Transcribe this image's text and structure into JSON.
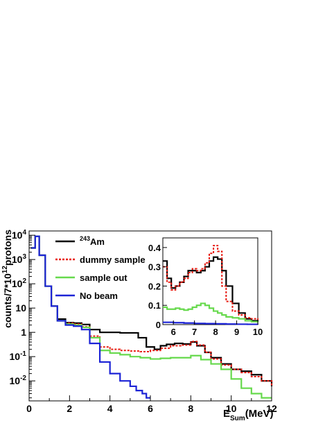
{
  "chart_data": [
    {
      "type": "line",
      "ylabel_html": [
        "counts/7*10",
        "12",
        "protons"
      ],
      "xlabel_parts": [
        "E",
        "Sum",
        "(MeV)"
      ],
      "xlim": [
        0,
        12
      ],
      "ylim": [
        0.0015,
        15000
      ],
      "y_scale": "log",
      "x_ticks": [
        "0",
        "2",
        "4",
        "6",
        "8",
        "10",
        "12"
      ],
      "y_ticks": [
        {
          "base": "10",
          "exp": "4"
        },
        {
          "base": "10",
          "exp": "3"
        },
        {
          "base": "10",
          "exp": "2"
        },
        {
          "base": "10",
          "exp": ""
        },
        {
          "base": "1",
          "exp": ""
        },
        {
          "base": "10",
          "exp": "-1"
        },
        {
          "base": "10",
          "exp": "-2"
        }
      ],
      "legend_position": "top-left",
      "series": [
        {
          "name": "Am",
          "name_sup": "243",
          "color": "#000000",
          "style": "solid",
          "x": [
            0.1,
            0.3,
            0.5,
            0.8,
            1.1,
            1.4,
            1.8,
            2.2,
            2.6,
            3.0,
            3.5,
            4.0,
            4.5,
            5.0,
            5.4,
            5.8,
            6.2,
            6.5,
            6.8,
            7.2,
            7.6,
            8.0,
            8.3,
            8.7,
            9.0,
            9.5,
            10.0,
            10.5,
            11.0,
            11.5,
            12.0
          ],
          "y": [
            3000,
            9000,
            1500,
            80,
            12,
            3.5,
            2.5,
            2.4,
            2.1,
            1.3,
            1.0,
            1.0,
            0.95,
            0.95,
            0.6,
            0.25,
            0.2,
            0.28,
            0.32,
            0.35,
            0.33,
            0.4,
            0.28,
            0.15,
            0.09,
            0.05,
            0.03,
            0.025,
            0.018,
            0.01,
            0.006
          ]
        },
        {
          "name": "dummy sample",
          "color": "#e8190f",
          "style": "dotted",
          "x": [
            0.1,
            0.3,
            0.5,
            0.8,
            1.1,
            1.4,
            1.8,
            2.2,
            2.6,
            3.0,
            3.5,
            4.0,
            4.5,
            5.0,
            5.5,
            6.0,
            6.5,
            7.0,
            7.5,
            8.0,
            8.3,
            8.7,
            9.0,
            9.5,
            10.0,
            10.5,
            11.0,
            11.5,
            12.0
          ],
          "y": [
            3000,
            9000,
            1500,
            80,
            12,
            3.0,
            2.4,
            2.2,
            1.7,
            0.7,
            0.25,
            0.2,
            0.18,
            0.17,
            0.16,
            0.18,
            0.22,
            0.28,
            0.3,
            0.42,
            0.3,
            0.15,
            0.08,
            0.045,
            0.03,
            0.022,
            0.015,
            0.01,
            0.006
          ]
        },
        {
          "name": "sample out",
          "color": "#66d94c",
          "style": "solid",
          "x": [
            0.1,
            0.3,
            0.5,
            0.8,
            1.1,
            1.4,
            1.8,
            2.2,
            2.6,
            3.0,
            3.5,
            4.0,
            4.5,
            5.0,
            5.5,
            6.0,
            6.5,
            7.0,
            7.5,
            8.0,
            8.5,
            9.0,
            9.5,
            10.0,
            10.5,
            11.0,
            11.5,
            12.0
          ],
          "y": [
            3000,
            9000,
            1500,
            80,
            12,
            3.0,
            2.2,
            2.0,
            1.6,
            0.6,
            0.18,
            0.14,
            0.12,
            0.1,
            0.09,
            0.08,
            0.085,
            0.09,
            0.09,
            0.11,
            0.075,
            0.05,
            0.03,
            0.012,
            0.005,
            0.003,
            0.002,
            0.002
          ]
        },
        {
          "name": "No beam",
          "color": "#1c23d6",
          "style": "solid",
          "x": [
            0.1,
            0.3,
            0.5,
            0.8,
            1.1,
            1.4,
            1.8,
            2.2,
            2.6,
            3.0,
            3.5,
            4.0,
            4.5,
            5.0,
            5.3,
            5.6,
            5.8,
            6.0
          ],
          "y": [
            3000,
            9000,
            1500,
            80,
            12,
            3.0,
            2.0,
            1.8,
            1.3,
            0.35,
            0.06,
            0.02,
            0.01,
            0.006,
            0.004,
            0.003,
            0.002,
            0.002
          ]
        }
      ]
    },
    {
      "type": "line",
      "role": "inset",
      "xlim": [
        5.5,
        10
      ],
      "ylim": [
        0,
        0.45
      ],
      "y_scale": "linear",
      "x_ticks": [
        "6",
        "7",
        "8",
        "9",
        "10"
      ],
      "y_ticks": [
        "0",
        "0.1",
        "0.2",
        "0.3",
        "0.4"
      ],
      "series": [
        {
          "color": "#000000",
          "style": "solid",
          "x": [
            5.5,
            5.7,
            5.9,
            6.1,
            6.3,
            6.5,
            6.7,
            6.9,
            7.1,
            7.3,
            7.5,
            7.7,
            7.9,
            8.1,
            8.3,
            8.5,
            8.8,
            9.1,
            9.4,
            9.7,
            10.0
          ],
          "y": [
            0.33,
            0.24,
            0.19,
            0.2,
            0.22,
            0.25,
            0.28,
            0.28,
            0.27,
            0.28,
            0.3,
            0.33,
            0.35,
            0.34,
            0.28,
            0.2,
            0.11,
            0.06,
            0.03,
            0.02,
            0.015
          ]
        },
        {
          "color": "#e8190f",
          "style": "dotted",
          "x": [
            5.5,
            5.7,
            5.9,
            6.1,
            6.3,
            6.5,
            6.7,
            6.9,
            7.1,
            7.3,
            7.5,
            7.7,
            7.9,
            8.1,
            8.3,
            8.5,
            8.8,
            9.1,
            9.4,
            9.7,
            10.0
          ],
          "y": [
            0.3,
            0.22,
            0.18,
            0.2,
            0.22,
            0.24,
            0.27,
            0.29,
            0.28,
            0.29,
            0.32,
            0.37,
            0.41,
            0.38,
            0.2,
            0.12,
            0.07,
            0.05,
            0.035,
            0.03,
            0.025
          ]
        },
        {
          "color": "#66d94c",
          "style": "solid",
          "x": [
            5.5,
            5.7,
            5.9,
            6.1,
            6.3,
            6.5,
            6.7,
            6.9,
            7.1,
            7.3,
            7.5,
            7.7,
            7.9,
            8.1,
            8.3,
            8.5,
            8.8,
            9.1,
            9.4,
            9.7,
            10.0
          ],
          "y": [
            0.09,
            0.08,
            0.08,
            0.085,
            0.08,
            0.075,
            0.08,
            0.09,
            0.1,
            0.11,
            0.1,
            0.085,
            0.07,
            0.06,
            0.05,
            0.04,
            0.035,
            0.03,
            0.02,
            0.015,
            0.01
          ]
        },
        {
          "color": "#1c23d6",
          "style": "solid",
          "x": [
            5.5,
            6.0,
            6.5,
            7.0,
            7.5,
            8.0,
            8.5,
            9.0,
            9.5,
            10.0
          ],
          "y": [
            0.012,
            0.01,
            0.008,
            0.006,
            0.005,
            0.004,
            0.003,
            0.002,
            0.0015,
            0.001
          ]
        }
      ]
    }
  ]
}
